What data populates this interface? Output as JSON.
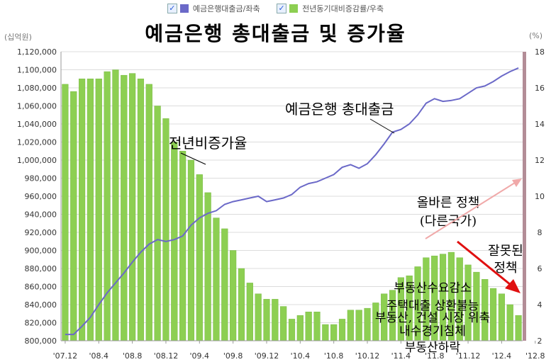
{
  "legend": {
    "deposit_label": "예금은행대출금/좌축",
    "yoy_label": "전년동기대비증감률/우축"
  },
  "units": {
    "left": "(십억원)",
    "right": "(%)"
  },
  "title": "예금은행 총대출금 및 증가율",
  "annotations": {
    "loans_line": "예금은행 총대출금",
    "growth_rate": "전년비증가율",
    "right_policy_line1": "올바른 정책",
    "right_policy_line2": "(다른국가)",
    "wrong_policy_line1": "잘못된",
    "wrong_policy_line2": "정책",
    "causes": [
      "부동산수요감소",
      "주택대출 상환불능",
      "부동산, 건설 시장 위축",
      "내수경기침체",
      "부동산하락"
    ]
  },
  "colors": {
    "bar": "#8dcf52",
    "bar_edge": "#6fb33a",
    "line": "#6b69c8",
    "right_arrow": "#f0a9a9",
    "wrong_arrow": "#e01010",
    "right_axis": "#b38d97"
  },
  "chart_data": {
    "type": "bar+line",
    "title": "예금은행 총대출금 및 증가율",
    "x_tick_labels": [
      "'07.12",
      "'08.4",
      "'08.8",
      "'08.12",
      "'09.4",
      "'09.8",
      "'09.12",
      "'10.4",
      "'10.8",
      "'10.12",
      "'11.4",
      "'11.8",
      "'11.12",
      "'12.4",
      "'12.8"
    ],
    "y_left": {
      "label": "(십억원)",
      "range": [
        800000,
        1120000
      ],
      "ticks": [
        800000,
        820000,
        840000,
        860000,
        880000,
        900000,
        920000,
        940000,
        960000,
        980000,
        1000000,
        1020000,
        1040000,
        1060000,
        1080000,
        1100000,
        1120000
      ]
    },
    "y_right": {
      "label": "(%)",
      "range": [
        2,
        18
      ],
      "ticks": [
        2,
        4,
        6,
        8,
        10,
        12,
        14,
        16,
        18
      ]
    },
    "grid": true,
    "legend_position": "top",
    "series": [
      {
        "name": "예금은행대출금/좌축",
        "kind": "line",
        "axis": "left",
        "values": [
          807000,
          807000,
          816000,
          826000,
          840000,
          853000,
          864000,
          875000,
          887000,
          898000,
          907000,
          912000,
          910000,
          912000,
          916000,
          928000,
          936000,
          941000,
          944000,
          951000,
          954000,
          956000,
          958000,
          960000,
          954000,
          956000,
          958000,
          962000,
          970000,
          974000,
          976000,
          980000,
          984000,
          992000,
          995000,
          991000,
          996000,
          1006000,
          1018000,
          1031000,
          1034000,
          1040000,
          1050000,
          1063000,
          1068000,
          1065000,
          1066000,
          1068000,
          1074000,
          1080000,
          1082000,
          1087000,
          1093000,
          1098000,
          1102000
        ]
      },
      {
        "name": "전년동기대비증감률/우축",
        "kind": "bar",
        "axis": "right",
        "values": [
          16.2,
          15.8,
          16.5,
          16.5,
          16.5,
          16.9,
          17.0,
          16.7,
          16.8,
          16.5,
          16.2,
          15.0,
          14.3,
          13.0,
          12.5,
          12.0,
          11.2,
          10.2,
          8.8,
          8.2,
          7.0,
          6.0,
          5.2,
          4.6,
          4.3,
          4.3,
          3.9,
          3.2,
          3.4,
          3.6,
          3.6,
          2.9,
          2.9,
          3.2,
          3.7,
          3.7,
          3.8,
          4.1,
          4.6,
          4.8,
          5.5,
          5.6,
          6.1,
          6.6,
          6.7,
          6.8,
          6.9,
          6.6,
          6.2,
          5.8,
          5.4,
          4.9,
          4.6,
          4.0,
          3.4
        ]
      }
    ]
  }
}
